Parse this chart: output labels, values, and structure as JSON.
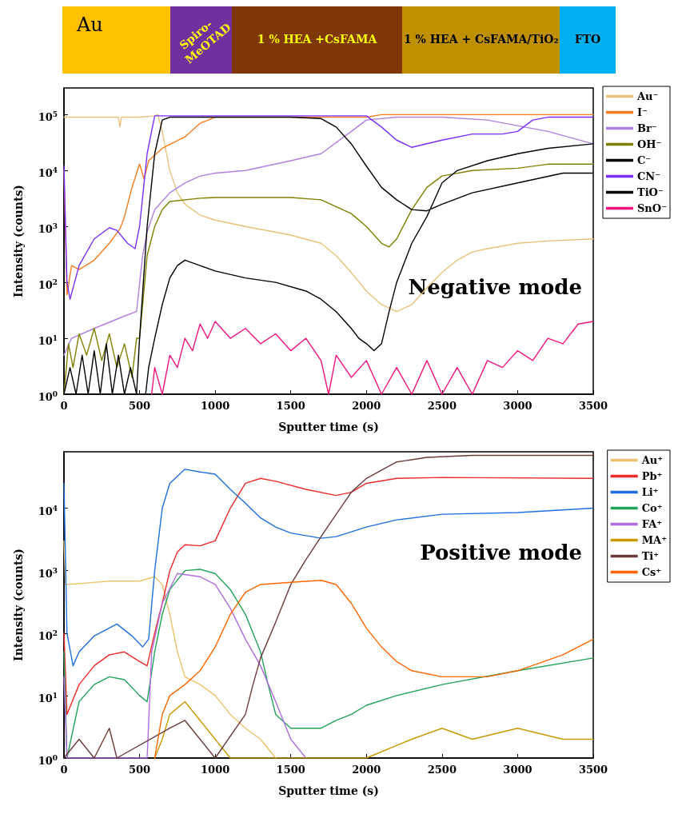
{
  "chart_data": [
    {
      "type": "other",
      "categories": [
        "Au",
        "Spiro-MeOTAD",
        "1 % HEA +CsFAMA",
        "1 % HEA + CsFAMA/TiO₂",
        "FTO"
      ],
      "colors": [
        "#ffc000",
        "#7030a0",
        "#7f3706",
        "#bf9000",
        "#00b0f0"
      ]
    },
    {
      "type": "line",
      "xlabel": "Sputter time (s)",
      "ylabel": "Intensity (counts)",
      "annotations": [
        "Negative mode"
      ],
      "log": "y",
      "grid": false,
      "legend": "right",
      "marker": "none",
      "line_style": "solid",
      "xlim": [
        0,
        3500
      ],
      "xticks": [
        0,
        500,
        1000,
        1500,
        2000,
        2500,
        3000,
        3500
      ],
      "ylim": [
        1,
        300000
      ],
      "yticks": [
        {
          "value": 1,
          "label": "10$^{0}$"
        },
        {
          "value": 10,
          "label": "10$^{1}$"
        },
        {
          "value": 100,
          "label": "10$^{2}$"
        },
        {
          "value": 1000,
          "label": "10$^{3}$"
        },
        {
          "value": 10000,
          "label": "10$^{4}$"
        },
        {
          "value": 100000,
          "label": "10$^{5}$"
        }
      ],
      "series": [
        {
          "name": "Au⁻",
          "color": "#e8c27a",
          "x": [
            0,
            200,
            360,
            370,
            380,
            500,
            600,
            620,
            650,
            700,
            750,
            800,
            900,
            1000,
            1200,
            1500,
            1700,
            1800,
            1900,
            2000,
            2100,
            2150,
            2200,
            2300,
            2400,
            2500,
            2600,
            2700,
            2800,
            3000,
            3200,
            3500
          ],
          "values": [
            90000,
            90000,
            90000,
            60000,
            90000,
            90000,
            95000,
            100000,
            50000,
            10000,
            4000,
            2500,
            1600,
            1300,
            1000,
            700,
            500,
            300,
            150,
            70,
            40,
            35,
            30,
            40,
            80,
            150,
            250,
            350,
            400,
            500,
            550,
            600
          ]
        },
        {
          "name": "I⁻",
          "color": "#f57c1f",
          "x": [
            0,
            20,
            50,
            100,
            200,
            300,
            370,
            400,
            450,
            500,
            530,
            560,
            650,
            800,
            900,
            1000,
            2000,
            2100,
            3500
          ],
          "values": [
            10000,
            60,
            200,
            170,
            250,
            500,
            900,
            1500,
            5000,
            13000,
            7000,
            15000,
            25000,
            40000,
            70000,
            90000,
            90000,
            100000,
            100000
          ]
        },
        {
          "name": "Br⁻",
          "color": "#b07fe0",
          "x": [
            0,
            50,
            200,
            400,
            480,
            520,
            550,
            600,
            700,
            800,
            900,
            1000,
            1200,
            1500,
            1700,
            1900,
            2000,
            2200,
            2500,
            2800,
            3200,
            3500
          ],
          "values": [
            5,
            10,
            15,
            25,
            30,
            300,
            800,
            2000,
            4000,
            6000,
            8000,
            9000,
            10000,
            15000,
            20000,
            50000,
            80000,
            90000,
            90000,
            80000,
            50000,
            30000
          ]
        },
        {
          "name": "OH⁻",
          "color": "#808000",
          "x": [
            0,
            30,
            60,
            100,
            150,
            200,
            250,
            300,
            350,
            400,
            450,
            480,
            500,
            550,
            600,
            650,
            700,
            900,
            1000,
            1500,
            1700,
            1900,
            2000,
            2100,
            2150,
            2200,
            2300,
            2400,
            2500,
            2700,
            3000,
            3200,
            3500
          ],
          "values": [
            1,
            8,
            3,
            12,
            5,
            15,
            4,
            12,
            3,
            8,
            2,
            10,
            10,
            300,
            1000,
            2000,
            2800,
            3200,
            3300,
            3300,
            3000,
            1700,
            1000,
            500,
            430,
            600,
            2000,
            5000,
            8000,
            10000,
            11000,
            13000,
            13000
          ]
        },
        {
          "name": "C⁻",
          "color": "#000000",
          "x": [
            0,
            40,
            80,
            120,
            160,
            200,
            240,
            280,
            320,
            360,
            400,
            440,
            480,
            500,
            550,
            600,
            650,
            700,
            1500,
            1700,
            1800,
            1900,
            2000,
            2100,
            2200,
            2300,
            2400,
            2500,
            2700,
            3000,
            3300,
            3500
          ],
          "values": [
            1,
            3,
            1,
            5,
            1,
            6,
            1,
            8,
            1,
            5,
            1,
            3,
            1,
            10,
            1000,
            20000,
            80000,
            90000,
            90000,
            85000,
            60000,
            30000,
            12000,
            5000,
            3000,
            2000,
            1900,
            2500,
            4000,
            6000,
            9000,
            9000
          ]
        },
        {
          "name": "CN⁻",
          "color": "#7b2fff",
          "x": [
            0,
            20,
            40,
            100,
            200,
            300,
            350,
            420,
            470,
            500,
            550,
            600,
            2000,
            2100,
            2200,
            2300,
            2500,
            2700,
            2900,
            3000,
            3100,
            3200,
            3500
          ],
          "values": [
            12000,
            100,
            50,
            200,
            600,
            950,
            850,
            500,
            400,
            1000,
            20000,
            95000,
            95000,
            60000,
            35000,
            26000,
            35000,
            45000,
            45000,
            50000,
            80000,
            90000,
            90000
          ]
        },
        {
          "name": "TiO⁻",
          "color": "#000000",
          "x": [
            540,
            560,
            600,
            650,
            700,
            750,
            800,
            900,
            1000,
            1200,
            1400,
            1600,
            1700,
            1800,
            1900,
            1950,
            2000,
            2050,
            2100,
            2150,
            2200,
            2300,
            2400,
            2500,
            2600,
            2800,
            3000,
            3200,
            3500
          ],
          "values": [
            1,
            3,
            10,
            40,
            120,
            200,
            250,
            200,
            160,
            120,
            100,
            70,
            50,
            30,
            15,
            10,
            8,
            6,
            8,
            30,
            100,
            500,
            1500,
            6000,
            10000,
            15000,
            20000,
            25000,
            30000
          ]
        },
        {
          "name": "SnO⁻",
          "color": "#f0147f",
          "x": [
            580,
            600,
            650,
            700,
            750,
            800,
            850,
            900,
            950,
            1000,
            1100,
            1200,
            1300,
            1400,
            1500,
            1600,
            1700,
            1750,
            1800,
            1900,
            2000,
            2100,
            2200,
            2300,
            2400,
            2500,
            2600,
            2700,
            2800,
            2900,
            3000,
            3100,
            3200,
            3300,
            3400,
            3500
          ],
          "values": [
            1,
            3,
            1,
            5,
            3,
            10,
            6,
            18,
            10,
            20,
            10,
            15,
            8,
            12,
            6,
            10,
            4,
            1,
            5,
            2,
            4,
            1,
            3,
            1,
            4,
            1,
            3,
            1,
            4,
            3,
            6,
            4,
            10,
            8,
            18,
            20
          ]
        }
      ]
    },
    {
      "type": "line",
      "xlabel": "Sputter time (s)",
      "ylabel": "Intensity (counts)",
      "annotations": [
        "Positive mode"
      ],
      "log": "y",
      "grid": false,
      "legend": "right",
      "marker": "none",
      "line_style": "solid",
      "xlim": [
        0,
        3500
      ],
      "xticks": [
        0,
        500,
        1000,
        1500,
        2000,
        2500,
        3000,
        3500
      ],
      "ylim": [
        1,
        80000
      ],
      "yticks": [
        {
          "value": 1,
          "label": "10$^{0}$"
        },
        {
          "value": 10,
          "label": "10$^{1}$"
        },
        {
          "value": 100,
          "label": "10$^{2}$"
        },
        {
          "value": 1000,
          "label": "10$^{3}$"
        },
        {
          "value": 10000,
          "label": "10$^{4}$"
        }
      ],
      "series": [
        {
          "name": "Au⁺",
          "color": "#ecc36c",
          "x": [
            0,
            10,
            100,
            300,
            500,
            600,
            650,
            700,
            750,
            800,
            900,
            1000,
            1100,
            1200,
            1300,
            1400
          ],
          "values": [
            3000,
            600,
            620,
            680,
            680,
            800,
            600,
            200,
            50,
            20,
            15,
            10,
            5,
            3,
            2,
            1
          ]
        },
        {
          "name": "Pb⁺",
          "color": "#ef2a2a",
          "x": [
            0,
            20,
            100,
            200,
            300,
            400,
            500,
            550,
            600,
            650,
            700,
            750,
            800,
            900,
            1000,
            1100,
            1200,
            1300,
            1400,
            1600,
            1800,
            1900,
            2000,
            2200,
            2500,
            3500
          ],
          "values": [
            100,
            5,
            15,
            30,
            45,
            50,
            35,
            30,
            100,
            300,
            1000,
            2000,
            2600,
            2500,
            3000,
            10000,
            25000,
            30000,
            27000,
            20000,
            16000,
            18000,
            25000,
            30000,
            31000,
            30000
          ]
        },
        {
          "name": "Li⁺",
          "color": "#1f6fe0",
          "x": [
            0,
            20,
            60,
            100,
            200,
            350,
            450,
            520,
            560,
            600,
            650,
            700,
            800,
            900,
            1000,
            1100,
            1200,
            1300,
            1400,
            1500,
            1700,
            1800,
            2000,
            2200,
            2500,
            3000,
            3500
          ],
          "values": [
            25000,
            100,
            30,
            50,
            90,
            140,
            90,
            60,
            80,
            1000,
            10000,
            25000,
            42000,
            38000,
            35000,
            20000,
            12000,
            7000,
            5000,
            4000,
            3300,
            3500,
            5000,
            6500,
            8000,
            8500,
            10000
          ]
        },
        {
          "name": "Co⁺",
          "color": "#22a35a",
          "x": [
            0,
            20,
            100,
            200,
            300,
            400,
            500,
            550,
            600,
            650,
            700,
            800,
            900,
            1000,
            1100,
            1200,
            1300,
            1350,
            1400,
            1500,
            1700,
            1800,
            1900,
            2000,
            2200,
            2500,
            3000,
            3500
          ],
          "values": [
            50,
            1,
            8,
            15,
            20,
            18,
            10,
            8,
            50,
            200,
            500,
            1000,
            1050,
            900,
            500,
            200,
            50,
            15,
            5,
            3,
            3,
            4,
            5,
            7,
            10,
            15,
            25,
            40
          ]
        },
        {
          "name": "FA⁺",
          "color": "#b06be0",
          "x": [
            0,
            20,
            550,
            580,
            650,
            750,
            900,
            1000,
            1100,
            1200,
            1300,
            1400,
            1500,
            1600
          ],
          "values": [
            20,
            1,
            1,
            50,
            300,
            900,
            800,
            600,
            250,
            80,
            30,
            8,
            2,
            1
          ]
        },
        {
          "name": "MA⁺",
          "color": "#c89a00",
          "x": [
            600,
            650,
            700,
            800,
            900,
            1000,
            1100,
            2000,
            2300,
            2500,
            2700,
            3000,
            3300,
            3500
          ],
          "values": [
            1,
            2,
            5,
            8,
            4,
            2,
            1,
            1,
            2,
            3,
            2,
            3,
            2,
            2
          ]
        },
        {
          "name": "Ti⁺",
          "color": "#6b3a3a",
          "x": [
            0,
            100,
            200,
            300,
            350,
            700,
            800,
            900,
            1000,
            1200,
            1250,
            1300,
            1400,
            1500,
            1600,
            1700,
            1800,
            1900,
            2000,
            2200,
            2400,
            2700,
            3500
          ],
          "values": [
            1,
            2,
            1,
            3,
            1,
            3,
            4,
            2,
            1,
            5,
            15,
            40,
            150,
            600,
            1500,
            3500,
            8000,
            18000,
            30000,
            55000,
            65000,
            70000,
            70000
          ]
        },
        {
          "name": "Cs⁺",
          "color": "#ff6600",
          "x": [
            600,
            650,
            700,
            800,
            900,
            1000,
            1100,
            1200,
            1300,
            1500,
            1700,
            1800,
            1900,
            2000,
            2100,
            2200,
            2300,
            2500,
            2800,
            3000,
            3300,
            3500
          ],
          "values": [
            1,
            5,
            10,
            15,
            25,
            60,
            200,
            450,
            600,
            650,
            700,
            600,
            300,
            120,
            60,
            35,
            25,
            20,
            20,
            25,
            45,
            80
          ]
        }
      ]
    }
  ]
}
